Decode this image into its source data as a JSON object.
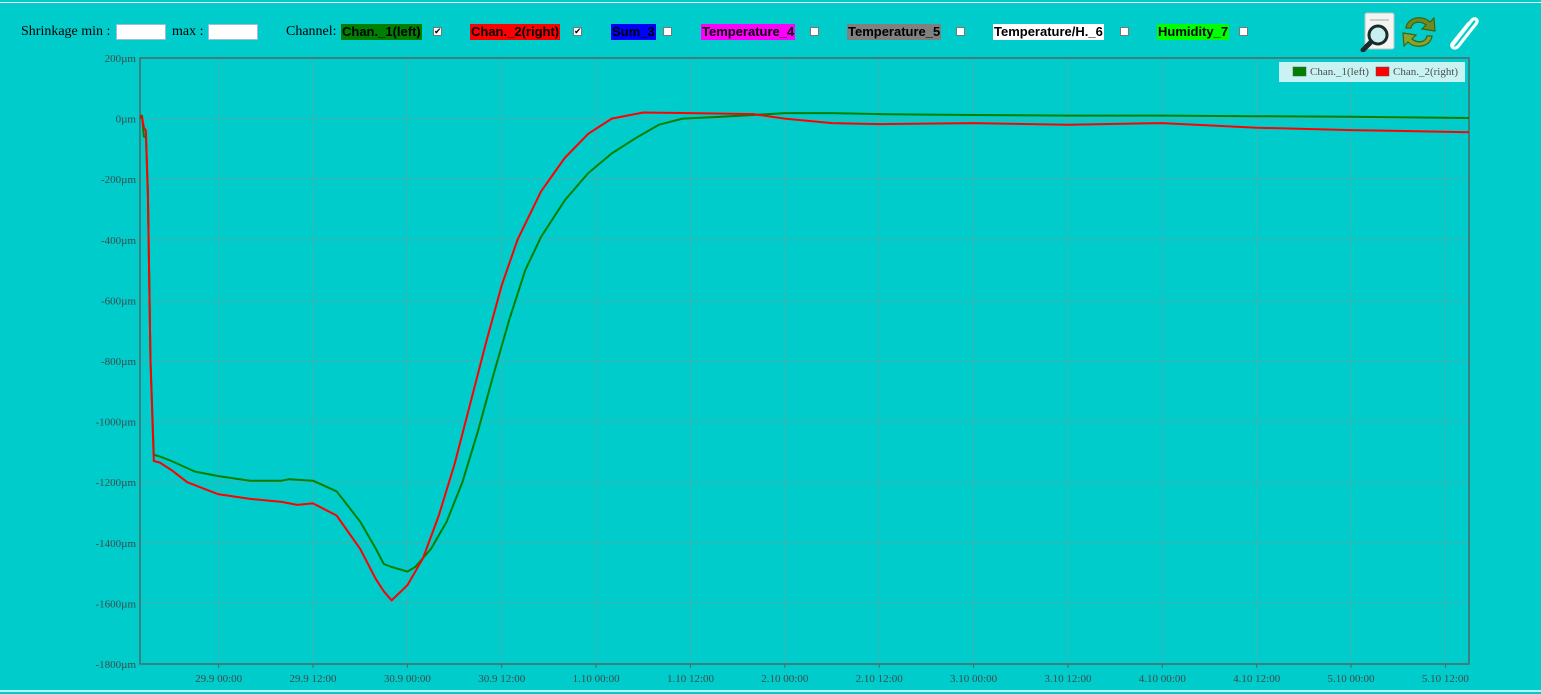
{
  "toolbar": {
    "shrinkage_label": "Shrinkage min :",
    "min_value": "",
    "max_label": "max :",
    "max_value": "",
    "channel_label": "Channel:",
    "channels": [
      {
        "label": "Chan._1(left)",
        "bg": "#008000",
        "fg": "#000000",
        "checked": true
      },
      {
        "label": "Chan._2(right)",
        "bg": "#ff0000",
        "fg": "#000000",
        "checked": true
      },
      {
        "label": "Sum_3",
        "bg": "#0000ff",
        "fg": "#000000",
        "checked": false
      },
      {
        "label": "Temperature_4",
        "bg": "#ff00ff",
        "fg": "#000000",
        "checked": false
      },
      {
        "label": "Temperature_5",
        "bg": "#808080",
        "fg": "#000000",
        "checked": false
      },
      {
        "label": "Temperature/H._6",
        "bg": "#ffffff",
        "fg": "#000000",
        "checked": false
      },
      {
        "label": "Humidity_7",
        "bg": "#00ff00",
        "fg": "#000000",
        "checked": false
      }
    ],
    "tools": [
      {
        "icon": "zoom-magnifier-icon"
      },
      {
        "icon": "refresh-arrows-icon"
      },
      {
        "icon": "paperclip-icon"
      }
    ]
  },
  "chart_data": {
    "type": "line",
    "title": "",
    "xlabel": "",
    "ylabel": "",
    "ylim": [
      -1800,
      200
    ],
    "xlim": [
      "2019-09-28T14:00",
      "2019-10-05T15:00"
    ],
    "y_ticks": [
      "200µm",
      "0µm",
      "-200µm",
      "-400µm",
      "-600µm",
      "-800µm",
      "-1000µm",
      "-1200µm",
      "-1400µm",
      "-1600µm",
      "-1800µm"
    ],
    "x_ticks": [
      "29.9 00:00",
      "29.9 12:00",
      "30.9 00:00",
      "30.9 12:00",
      "1.10 00:00",
      "1.10 12:00",
      "2.10 00:00",
      "2.10 12:00",
      "3.10 00:00",
      "3.10 12:00",
      "4.10 00:00",
      "4.10 12:00",
      "5.10 00:00",
      "5.10 12:00"
    ],
    "grid": true,
    "legend_position": "top-right",
    "series": [
      {
        "name": "Chan._1(left)",
        "color": "#008000",
        "points": [
          [
            "2019-09-28T14:00",
            0
          ],
          [
            "2019-09-28T14:15",
            10
          ],
          [
            "2019-09-28T14:30",
            -60
          ],
          [
            "2019-09-28T14:45",
            -60
          ],
          [
            "2019-09-28T15:00",
            -250
          ],
          [
            "2019-09-28T15:20",
            -800
          ],
          [
            "2019-09-28T15:45",
            -1110
          ],
          [
            "2019-09-28T16:30",
            -1115
          ],
          [
            "2019-09-28T18:00",
            -1130
          ],
          [
            "2019-09-28T21:00",
            -1165
          ],
          [
            "2019-09-29T00:00",
            -1180
          ],
          [
            "2019-09-29T04:00",
            -1195
          ],
          [
            "2019-09-29T08:00",
            -1195
          ],
          [
            "2019-09-29T09:00",
            -1190
          ],
          [
            "2019-09-29T12:00",
            -1195
          ],
          [
            "2019-09-29T15:00",
            -1230
          ],
          [
            "2019-09-29T18:00",
            -1330
          ],
          [
            "2019-09-29T20:00",
            -1420
          ],
          [
            "2019-09-29T21:00",
            -1470
          ],
          [
            "2019-09-29T22:00",
            -1480
          ],
          [
            "2019-09-30T00:00",
            -1495
          ],
          [
            "2019-09-30T01:00",
            -1480
          ],
          [
            "2019-09-30T03:00",
            -1420
          ],
          [
            "2019-09-30T05:00",
            -1330
          ],
          [
            "2019-09-30T07:00",
            -1200
          ],
          [
            "2019-09-30T09:00",
            -1030
          ],
          [
            "2019-09-30T11:00",
            -840
          ],
          [
            "2019-09-30T13:00",
            -660
          ],
          [
            "2019-09-30T15:00",
            -500
          ],
          [
            "2019-09-30T17:00",
            -390
          ],
          [
            "2019-09-30T20:00",
            -270
          ],
          [
            "2019-09-30T23:00",
            -180
          ],
          [
            "2019-10-01T02:00",
            -115
          ],
          [
            "2019-10-01T05:00",
            -65
          ],
          [
            "2019-10-01T08:00",
            -20
          ],
          [
            "2019-10-01T11:00",
            0
          ],
          [
            "2019-10-01T15:00",
            5
          ],
          [
            "2019-10-01T20:00",
            12
          ],
          [
            "2019-10-02T00:00",
            18
          ],
          [
            "2019-10-02T06:00",
            18
          ],
          [
            "2019-10-02T12:00",
            15
          ],
          [
            "2019-10-03T00:00",
            12
          ],
          [
            "2019-10-03T12:00",
            10
          ],
          [
            "2019-10-04T00:00",
            10
          ],
          [
            "2019-10-04T12:00",
            8
          ],
          [
            "2019-10-05T00:00",
            6
          ],
          [
            "2019-10-05T15:00",
            2
          ]
        ]
      },
      {
        "name": "Chan._2(right)",
        "color": "#ff0000",
        "points": [
          [
            "2019-09-28T14:00",
            10
          ],
          [
            "2019-09-28T14:15",
            5
          ],
          [
            "2019-09-28T14:30",
            -30
          ],
          [
            "2019-09-28T14:45",
            -40
          ],
          [
            "2019-09-28T15:00",
            -250
          ],
          [
            "2019-09-28T15:20",
            -800
          ],
          [
            "2019-09-28T15:45",
            -1130
          ],
          [
            "2019-09-28T16:30",
            -1135
          ],
          [
            "2019-09-28T18:00",
            -1160
          ],
          [
            "2019-09-28T20:00",
            -1200
          ],
          [
            "2019-09-28T22:00",
            -1220
          ],
          [
            "2019-09-29T00:00",
            -1240
          ],
          [
            "2019-09-29T04:00",
            -1255
          ],
          [
            "2019-09-29T08:00",
            -1265
          ],
          [
            "2019-09-29T10:00",
            -1275
          ],
          [
            "2019-09-29T12:00",
            -1270
          ],
          [
            "2019-09-29T15:00",
            -1310
          ],
          [
            "2019-09-29T18:00",
            -1420
          ],
          [
            "2019-09-29T20:00",
            -1520
          ],
          [
            "2019-09-29T21:00",
            -1560
          ],
          [
            "2019-09-29T22:00",
            -1590
          ],
          [
            "2019-09-29T23:00",
            -1565
          ],
          [
            "2019-09-30T00:00",
            -1540
          ],
          [
            "2019-09-30T02:00",
            -1450
          ],
          [
            "2019-09-30T04:00",
            -1310
          ],
          [
            "2019-09-30T06:00",
            -1140
          ],
          [
            "2019-09-30T08:00",
            -940
          ],
          [
            "2019-09-30T10:00",
            -740
          ],
          [
            "2019-09-30T12:00",
            -550
          ],
          [
            "2019-09-30T14:00",
            -400
          ],
          [
            "2019-09-30T17:00",
            -240
          ],
          [
            "2019-09-30T20:00",
            -130
          ],
          [
            "2019-09-30T23:00",
            -50
          ],
          [
            "2019-10-01T02:00",
            0
          ],
          [
            "2019-10-01T06:00",
            20
          ],
          [
            "2019-10-01T12:00",
            18
          ],
          [
            "2019-10-01T20:00",
            15
          ],
          [
            "2019-10-02T00:00",
            0
          ],
          [
            "2019-10-02T06:00",
            -15
          ],
          [
            "2019-10-02T12:00",
            -18
          ],
          [
            "2019-10-03T00:00",
            -15
          ],
          [
            "2019-10-03T12:00",
            -20
          ],
          [
            "2019-10-04T00:00",
            -15
          ],
          [
            "2019-10-04T12:00",
            -30
          ],
          [
            "2019-10-05T00:00",
            -38
          ],
          [
            "2019-10-05T15:00",
            -45
          ]
        ]
      }
    ]
  }
}
